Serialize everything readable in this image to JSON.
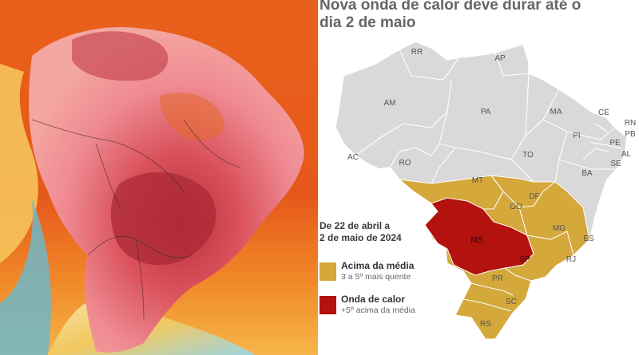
{
  "infographic": {
    "title_line1": "Nova onda de calor deve durar até o",
    "title_line2": "dia 2 de maio",
    "period_line1": "De 22 de abril a",
    "period_line2": "2 de maio de 2024"
  },
  "legend": [
    {
      "label": "Acima da média",
      "sublabel": "3 a 5º mais quente",
      "color": "#d4a83a"
    },
    {
      "label": "Onda de calor",
      "sublabel": "+5º acima da média",
      "color": "#b3120e"
    }
  ],
  "states": [
    "RR",
    "AP",
    "AM",
    "PA",
    "MA",
    "CE",
    "RN",
    "PB",
    "PI",
    "PE",
    "AL",
    "SE",
    "TO",
    "BA",
    "AC",
    "RO",
    "MT",
    "DF",
    "GO",
    "MG",
    "ES",
    "MS",
    "SP",
    "RJ",
    "PR",
    "SC",
    "RS"
  ],
  "colors": {
    "country_fill": "#d9d9d9",
    "border": "#ffffff",
    "above_average": "#d4a83a",
    "heat_wave": "#b3120e",
    "ocean_heatmap": "#e4521a",
    "cold_ocean": "#6fb7c7"
  }
}
